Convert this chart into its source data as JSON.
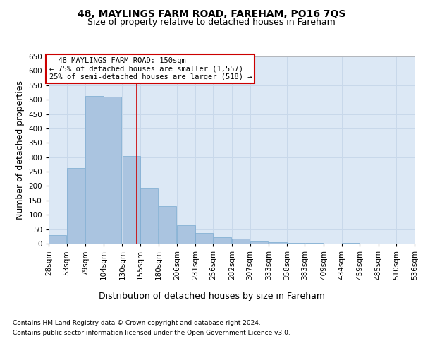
{
  "title": "48, MAYLINGS FARM ROAD, FAREHAM, PO16 7QS",
  "subtitle": "Size of property relative to detached houses in Fareham",
  "xlabel": "Distribution of detached houses by size in Fareham",
  "ylabel": "Number of detached properties",
  "footnote1": "Contains HM Land Registry data © Crown copyright and database right 2024.",
  "footnote2": "Contains public sector information licensed under the Open Government Licence v3.0.",
  "annotation_line1": "  48 MAYLINGS FARM ROAD: 150sqm",
  "annotation_line2": "← 75% of detached houses are smaller (1,557)",
  "annotation_line3": "25% of semi-detached houses are larger (518) →",
  "bar_left_edges": [
    28,
    53,
    79,
    104,
    130,
    155,
    180,
    206,
    231,
    256,
    282,
    307,
    333,
    358,
    383,
    409,
    434,
    459,
    485,
    510
  ],
  "bar_widths": [
    25,
    25,
    25,
    25,
    25,
    25,
    25,
    25,
    25,
    25,
    25,
    25,
    25,
    25,
    25,
    25,
    25,
    25,
    25,
    25
  ],
  "bar_heights": [
    30,
    263,
    513,
    510,
    305,
    193,
    130,
    63,
    37,
    22,
    16,
    8,
    6,
    2,
    3,
    1,
    2,
    1,
    0,
    1
  ],
  "bar_color": "#aac4e0",
  "bar_edge_color": "#7aaad0",
  "bar_linewidth": 0.5,
  "grid_color": "#c8d8ea",
  "plot_bg_color": "#dce8f5",
  "red_line_x": 150,
  "red_line_color": "#cc0000",
  "annotation_box_color": "#cc0000",
  "ylim": [
    0,
    650
  ],
  "yticks": [
    0,
    50,
    100,
    150,
    200,
    250,
    300,
    350,
    400,
    450,
    500,
    550,
    600,
    650
  ],
  "tick_labels": [
    "28sqm",
    "53sqm",
    "79sqm",
    "104sqm",
    "130sqm",
    "155sqm",
    "180sqm",
    "206sqm",
    "231sqm",
    "256sqm",
    "282sqm",
    "307sqm",
    "333sqm",
    "358sqm",
    "383sqm",
    "409sqm",
    "434sqm",
    "459sqm",
    "485sqm",
    "510sqm",
    "536sqm"
  ],
  "title_fontsize": 10,
  "subtitle_fontsize": 9,
  "axis_label_fontsize": 9,
  "tick_fontsize": 7.5,
  "annotation_fontsize": 7.5,
  "footnote_fontsize": 6.5
}
